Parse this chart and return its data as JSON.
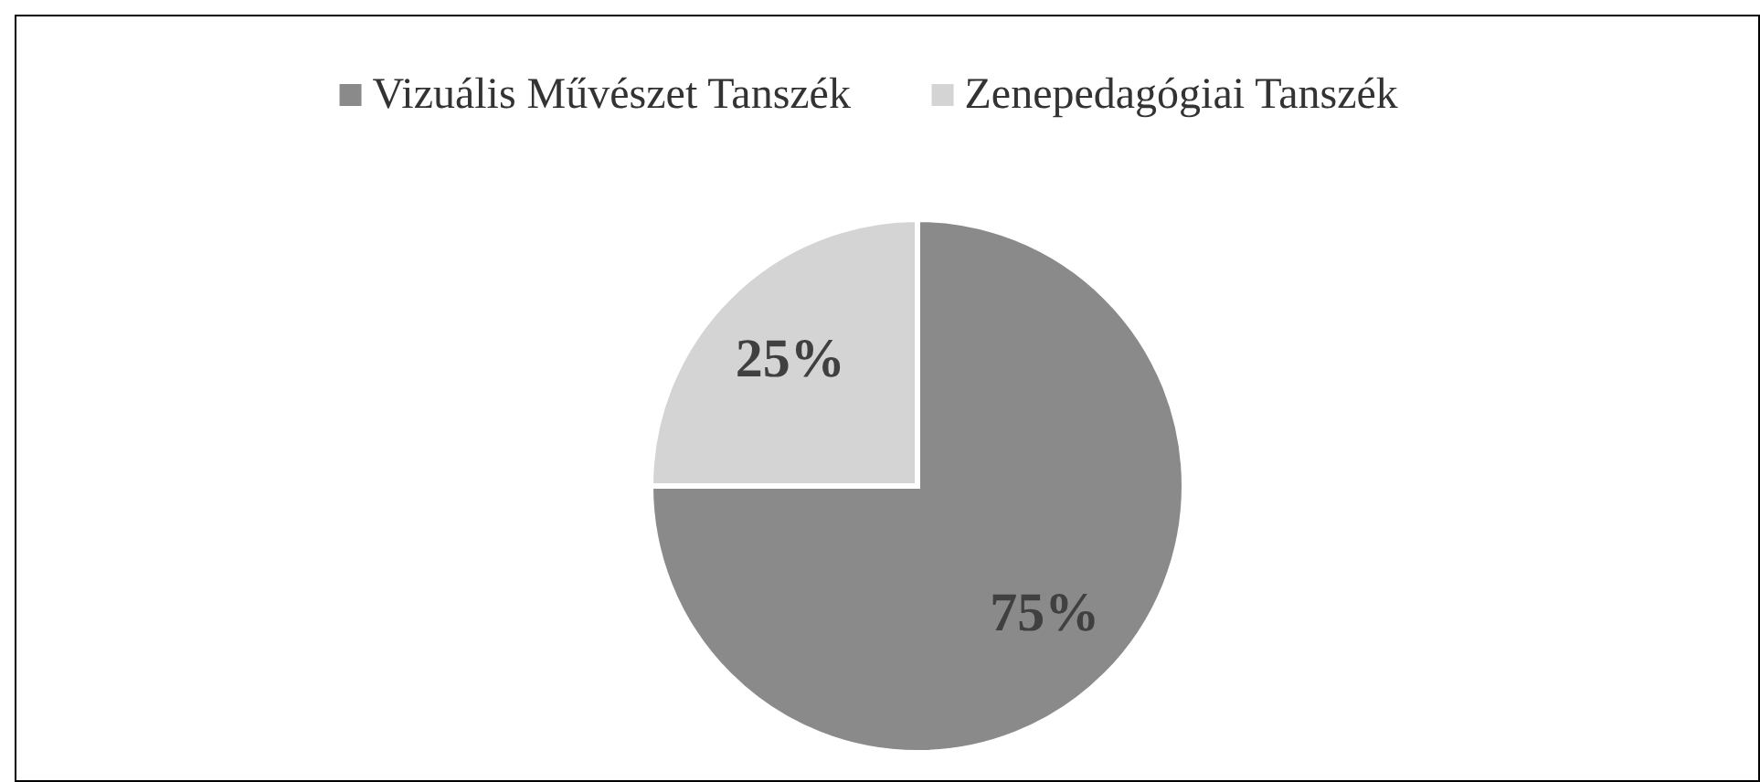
{
  "chart_data": {
    "type": "pie",
    "categories": [
      "Vizuális Művészet Tanszék",
      "Zenepedagógiai Tanszék"
    ],
    "values": [
      75,
      25
    ],
    "colors": [
      "#8a8a8a",
      "#d4d4d4"
    ],
    "value_labels": [
      "75%",
      "25%"
    ],
    "legend": "top"
  }
}
